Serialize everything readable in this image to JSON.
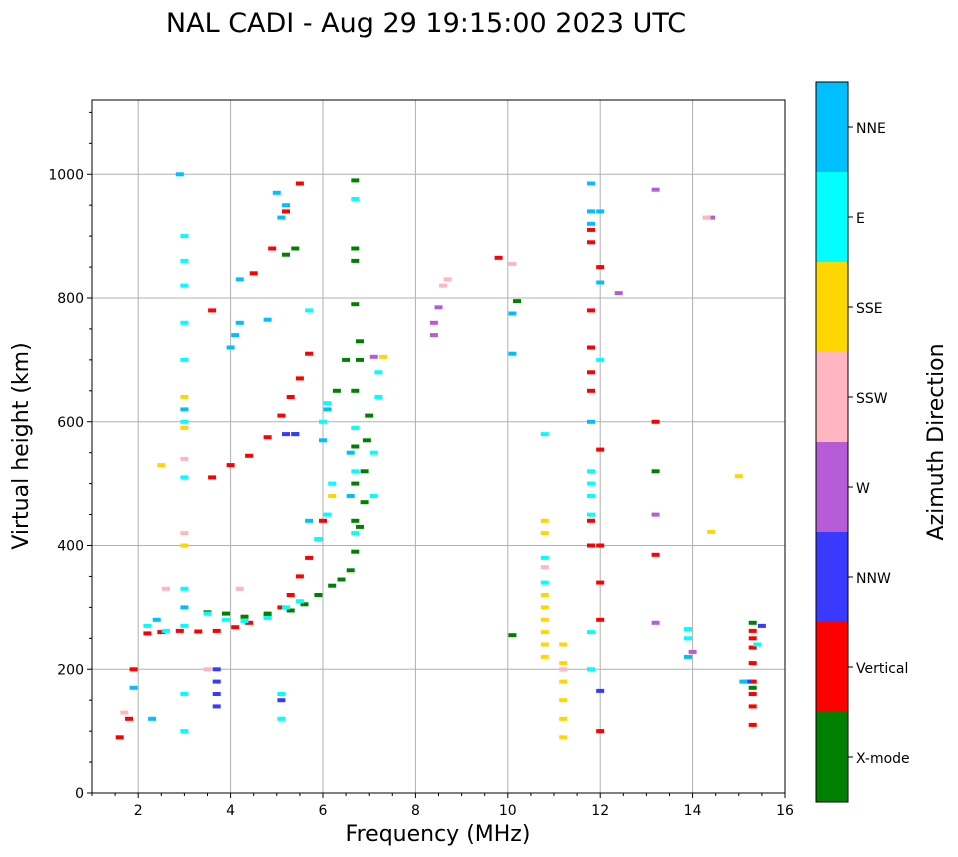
{
  "chart_data": {
    "type": "scatter",
    "title": "NAL CADI - Aug 29 19:15:00 2023 UTC",
    "xlabel": "Frequency (MHz)",
    "ylabel": "Virtual height (km)",
    "xlim": [
      1,
      16
    ],
    "ylim": [
      0,
      1120
    ],
    "xticks": [
      2,
      4,
      6,
      8,
      10,
      12,
      14,
      16
    ],
    "yticks": [
      0,
      200,
      400,
      600,
      800,
      1000
    ],
    "grid": true,
    "colorbar": {
      "label": "Azimuth Direction",
      "categories": [
        {
          "name": "X-mode",
          "color": "#008000"
        },
        {
          "name": "Vertical",
          "color": "#ff0000"
        },
        {
          "name": "NNW",
          "color": "#3a3aff"
        },
        {
          "name": "W",
          "color": "#b65cd6"
        },
        {
          "name": "SSW",
          "color": "#ffb6c1"
        },
        {
          "name": "SSE",
          "color": "#ffd700"
        },
        {
          "name": "E",
          "color": "#00ffff"
        },
        {
          "name": "NNE",
          "color": "#00bfff"
        }
      ]
    },
    "series": [
      {
        "name": "Vertical",
        "points": [
          [
            1.6,
            90
          ],
          [
            1.8,
            120
          ],
          [
            1.9,
            200
          ],
          [
            2.2,
            258
          ],
          [
            2.5,
            260
          ],
          [
            2.9,
            262
          ],
          [
            3.3,
            261
          ],
          [
            3.7,
            262
          ],
          [
            4.1,
            268
          ],
          [
            4.4,
            275
          ],
          [
            4.8,
            285
          ],
          [
            5.1,
            300
          ],
          [
            5.3,
            320
          ],
          [
            5.5,
            350
          ],
          [
            5.7,
            380
          ],
          [
            5.9,
            410
          ],
          [
            6.0,
            440
          ],
          [
            3.6,
            510
          ],
          [
            4.0,
            530
          ],
          [
            4.4,
            545
          ],
          [
            4.8,
            575
          ],
          [
            5.1,
            610
          ],
          [
            5.3,
            640
          ],
          [
            5.5,
            670
          ],
          [
            5.7,
            710
          ],
          [
            3.6,
            780
          ],
          [
            4.5,
            840
          ],
          [
            4.9,
            880
          ],
          [
            5.2,
            940
          ],
          [
            5.5,
            985
          ],
          [
            11.8,
            400
          ],
          [
            11.8,
            440
          ],
          [
            11.8,
            650
          ],
          [
            11.8,
            680
          ],
          [
            11.8,
            720
          ],
          [
            11.8,
            780
          ],
          [
            11.8,
            890
          ],
          [
            11.8,
            910
          ],
          [
            12.0,
            100
          ],
          [
            12.0,
            280
          ],
          [
            12.0,
            340
          ],
          [
            12.0,
            400
          ],
          [
            12.0,
            555
          ],
          [
            12.0,
            850
          ],
          [
            13.2,
            385
          ],
          [
            13.2,
            600
          ],
          [
            15.3,
            110
          ],
          [
            15.3,
            140
          ],
          [
            15.3,
            160
          ],
          [
            15.3,
            180
          ],
          [
            15.3,
            210
          ],
          [
            15.3,
            235
          ],
          [
            15.3,
            250
          ],
          [
            15.3,
            262
          ],
          [
            9.8,
            865
          ]
        ]
      },
      {
        "name": "X-mode",
        "points": [
          [
            3.5,
            292
          ],
          [
            3.9,
            290
          ],
          [
            4.3,
            285
          ],
          [
            4.8,
            290
          ],
          [
            5.3,
            295
          ],
          [
            5.6,
            305
          ],
          [
            5.9,
            320
          ],
          [
            6.2,
            335
          ],
          [
            6.4,
            345
          ],
          [
            6.6,
            360
          ],
          [
            6.7,
            390
          ],
          [
            6.8,
            430
          ],
          [
            6.9,
            470
          ],
          [
            6.9,
            520
          ],
          [
            6.95,
            570
          ],
          [
            7.0,
            610
          ],
          [
            6.7,
            440
          ],
          [
            6.7,
            500
          ],
          [
            6.7,
            560
          ],
          [
            6.7,
            650
          ],
          [
            6.8,
            700
          ],
          [
            6.8,
            730
          ],
          [
            6.7,
            790
          ],
          [
            6.7,
            860
          ],
          [
            6.7,
            880
          ],
          [
            6.7,
            990
          ],
          [
            5.4,
            580
          ],
          [
            5.2,
            870
          ],
          [
            5.4,
            880
          ],
          [
            6.3,
            650
          ],
          [
            10.1,
            255
          ],
          [
            10.2,
            795
          ],
          [
            13.2,
            520
          ],
          [
            15.3,
            275
          ],
          [
            15.3,
            170
          ],
          [
            6.5,
            700
          ]
        ]
      },
      {
        "name": "NNW",
        "points": [
          [
            3.7,
            140
          ],
          [
            3.7,
            160
          ],
          [
            3.7,
            180
          ],
          [
            3.7,
            200
          ],
          [
            5.1,
            150
          ],
          [
            5.2,
            580
          ],
          [
            5.4,
            580
          ],
          [
            12.0,
            165
          ],
          [
            15.2,
            180
          ],
          [
            15.5,
            270
          ]
        ]
      },
      {
        "name": "W",
        "points": [
          [
            8.4,
            740
          ],
          [
            8.4,
            760
          ],
          [
            8.5,
            785
          ],
          [
            7.1,
            705
          ],
          [
            13.2,
            450
          ],
          [
            13.2,
            975
          ],
          [
            14.4,
            930
          ],
          [
            12.4,
            808
          ],
          [
            13.2,
            275
          ],
          [
            14.0,
            228
          ]
        ]
      },
      {
        "name": "SSW",
        "points": [
          [
            3.0,
            420
          ],
          [
            3.0,
            540
          ],
          [
            2.6,
            330
          ],
          [
            3.5,
            200
          ],
          [
            4.2,
            330
          ],
          [
            8.6,
            820
          ],
          [
            8.7,
            830
          ],
          [
            10.1,
            855
          ],
          [
            10.8,
            365
          ],
          [
            11.2,
            200
          ],
          [
            14.3,
            930
          ],
          [
            1.7,
            130
          ]
        ]
      },
      {
        "name": "SSE",
        "points": [
          [
            3.0,
            400
          ],
          [
            3.0,
            590
          ],
          [
            3.0,
            640
          ],
          [
            10.8,
            220
          ],
          [
            10.8,
            240
          ],
          [
            10.8,
            260
          ],
          [
            10.8,
            280
          ],
          [
            10.8,
            300
          ],
          [
            10.8,
            320
          ],
          [
            10.8,
            420
          ],
          [
            10.8,
            440
          ],
          [
            11.2,
            90
          ],
          [
            11.2,
            120
          ],
          [
            11.2,
            150
          ],
          [
            11.2,
            180
          ],
          [
            11.2,
            210
          ],
          [
            11.2,
            240
          ],
          [
            14.4,
            422
          ],
          [
            15.0,
            512
          ],
          [
            7.3,
            705
          ],
          [
            6.2,
            480
          ],
          [
            2.5,
            530
          ]
        ]
      },
      {
        "name": "E",
        "points": [
          [
            2.2,
            270
          ],
          [
            2.6,
            262
          ],
          [
            3.0,
            270
          ],
          [
            3.5,
            290
          ],
          [
            3.9,
            280
          ],
          [
            4.3,
            278
          ],
          [
            4.8,
            283
          ],
          [
            5.1,
            120
          ],
          [
            5.1,
            160
          ],
          [
            5.2,
            300
          ],
          [
            5.5,
            310
          ],
          [
            5.9,
            410
          ],
          [
            6.1,
            450
          ],
          [
            6.2,
            500
          ],
          [
            6.0,
            600
          ],
          [
            6.1,
            630
          ],
          [
            6.7,
            420
          ],
          [
            6.7,
            520
          ],
          [
            6.7,
            590
          ],
          [
            7.1,
            480
          ],
          [
            7.1,
            550
          ],
          [
            7.2,
            640
          ],
          [
            7.2,
            680
          ],
          [
            3.0,
            100
          ],
          [
            3.0,
            160
          ],
          [
            3.0,
            330
          ],
          [
            3.0,
            510
          ],
          [
            3.0,
            600
          ],
          [
            3.0,
            700
          ],
          [
            3.0,
            760
          ],
          [
            3.0,
            820
          ],
          [
            3.0,
            860
          ],
          [
            3.0,
            900
          ],
          [
            5.7,
            780
          ],
          [
            6.7,
            960
          ],
          [
            10.8,
            340
          ],
          [
            10.8,
            380
          ],
          [
            10.8,
            580
          ],
          [
            11.8,
            200
          ],
          [
            11.8,
            260
          ],
          [
            11.8,
            450
          ],
          [
            11.8,
            480
          ],
          [
            11.8,
            500
          ],
          [
            11.8,
            520
          ],
          [
            12.0,
            700
          ],
          [
            13.9,
            250
          ],
          [
            13.9,
            265
          ],
          [
            15.4,
            240
          ]
        ]
      },
      {
        "name": "NNE",
        "points": [
          [
            1.9,
            170
          ],
          [
            2.3,
            120
          ],
          [
            2.4,
            280
          ],
          [
            3.0,
            300
          ],
          [
            4.0,
            720
          ],
          [
            4.1,
            740
          ],
          [
            4.2,
            760
          ],
          [
            4.8,
            765
          ],
          [
            5.1,
            930
          ],
          [
            5.2,
            950
          ],
          [
            5.7,
            440
          ],
          [
            6.0,
            570
          ],
          [
            6.1,
            620
          ],
          [
            6.6,
            480
          ],
          [
            6.6,
            550
          ],
          [
            10.1,
            710
          ],
          [
            10.1,
            775
          ],
          [
            11.8,
            940
          ],
          [
            11.8,
            985
          ],
          [
            12.0,
            825
          ],
          [
            12.0,
            940
          ],
          [
            13.9,
            220
          ],
          [
            15.1,
            180
          ],
          [
            3.0,
            620
          ],
          [
            4.2,
            830
          ],
          [
            5.0,
            970
          ],
          [
            2.9,
            1000
          ],
          [
            11.8,
            920
          ],
          [
            11.8,
            600
          ]
        ]
      }
    ]
  }
}
